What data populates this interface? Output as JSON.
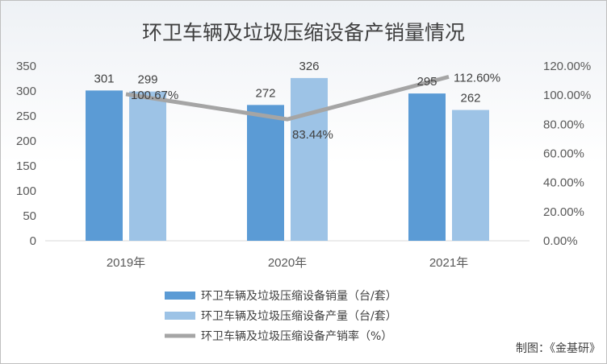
{
  "chart_data": {
    "type": "bar",
    "title": "环卫车辆及垃圾压缩设备产销量情况",
    "categories": [
      "2019年",
      "2020年",
      "2021年"
    ],
    "series": [
      {
        "name": "环卫车辆及垃圾压缩设备销量（台/套）",
        "kind": "bar",
        "axis": "left",
        "color": "#5b9bd5",
        "values": [
          301,
          272,
          295
        ],
        "labels": [
          "301",
          "272",
          "295"
        ]
      },
      {
        "name": "环卫车辆及垃圾压缩设备产量（台/套）",
        "kind": "bar",
        "axis": "left",
        "color": "#9dc3e6",
        "values": [
          299,
          326,
          262
        ],
        "labels": [
          "299",
          "326",
          "262"
        ]
      },
      {
        "name": "环卫车辆及垃圾压缩设备产销率（%）",
        "kind": "line",
        "axis": "right",
        "color": "#a5a5a5",
        "values": [
          100.67,
          83.44,
          112.6
        ],
        "labels": [
          "100.67%",
          "83.44%",
          "112.60%"
        ]
      }
    ],
    "y_left": {
      "min": 0,
      "max": 350,
      "ticks": [
        "0",
        "50",
        "100",
        "150",
        "200",
        "250",
        "300",
        "350"
      ]
    },
    "y_right": {
      "min": 0,
      "max": 120,
      "ticks": [
        "0.00%",
        "20.00%",
        "40.00%",
        "60.00%",
        "80.00%",
        "100.00%",
        "120.00%"
      ]
    },
    "grid": false,
    "legend_position": "bottom"
  },
  "credit": "制图：《金基研》"
}
